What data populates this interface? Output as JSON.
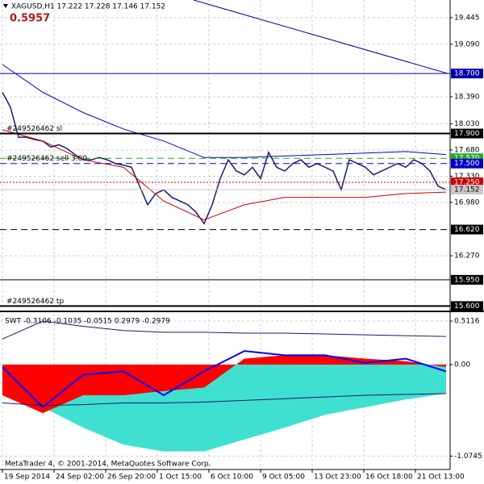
{
  "chart_data": [
    {
      "type": "line",
      "title": "XAGUSD,H1  17.222 17.228 17.146 17.152",
      "subtitle": "0.5957",
      "ylim": [
        15.54,
        19.68
      ],
      "yticks": [
        19.445,
        {
          "value": 19.09,
          "label": "19.090"
        },
        {
          "value": 18.39,
          "label": "18.390"
        },
        {
          "value": 18.03,
          "label": "18.030"
        },
        {
          "value": 17.68,
          "label": "17.680"
        },
        {
          "value": 17.33,
          "label": "17.330"
        },
        {
          "value": 16.98,
          "label": "16.980"
        },
        {
          "value": 16.27,
          "label": "16.270"
        }
      ],
      "grid": true,
      "series": [
        {
          "kind": "line",
          "color": "#1a1a6e",
          "width": 1.5,
          "x": [
            0,
            5,
            10,
            15,
            20,
            25,
            30,
            35,
            40,
            45,
            50,
            55,
            60,
            65,
            70,
            75,
            80,
            85,
            90,
            95,
            100,
            105,
            110,
            115,
            120,
            125,
            130,
            135,
            140,
            145,
            150,
            155,
            160,
            165,
            170,
            175,
            180,
            185,
            190,
            195,
            200,
            205,
            210,
            215,
            220,
            225,
            230,
            235,
            240,
            245,
            250,
            255,
            260,
            265,
            270,
            275
          ],
          "values": [
            18.45,
            18.25,
            17.85,
            17.85,
            17.82,
            17.8,
            17.72,
            17.75,
            17.7,
            17.62,
            17.55,
            17.55,
            17.58,
            17.55,
            17.5,
            17.48,
            17.45,
            17.2,
            16.95,
            17.1,
            17.15,
            17.05,
            17.0,
            16.95,
            16.85,
            16.7,
            16.95,
            17.3,
            17.55,
            17.4,
            17.35,
            17.45,
            17.3,
            17.65,
            17.45,
            17.4,
            17.5,
            17.55,
            17.45,
            17.5,
            17.45,
            17.4,
            17.15,
            17.55,
            17.5,
            17.45,
            17.35,
            17.4,
            17.45,
            17.5,
            17.45,
            17.55,
            17.5,
            17.4,
            17.2,
            17.15
          ]
        },
        {
          "kind": "line",
          "color": "#0000cc",
          "width": 1,
          "x": [
            0,
            25,
            50,
            75,
            100,
            125,
            150,
            175,
            200,
            225,
            250,
            275
          ],
          "values": [
            18.82,
            18.45,
            18.18,
            17.96,
            17.8,
            17.58,
            17.58,
            17.6,
            17.62,
            17.64,
            17.66,
            17.62
          ]
        },
        {
          "kind": "line",
          "color": "#cc0000",
          "width": 1,
          "x": [
            0,
            25,
            50,
            75,
            100,
            125,
            150,
            175,
            200,
            225,
            250,
            275
          ],
          "values": [
            17.95,
            17.8,
            17.55,
            17.45,
            17.0,
            16.75,
            16.95,
            17.05,
            17.05,
            17.05,
            17.1,
            17.12
          ]
        },
        {
          "kind": "line",
          "color": "#0000aa",
          "width": 1,
          "x": [
            118.5,
            276
          ],
          "values": [
            19.68,
            18.7
          ]
        }
      ],
      "levels": [
        {
          "value": 18.7,
          "label": "18.700",
          "color": "#0000aa",
          "text_color": "#ffffff",
          "style": "solid",
          "width": 1
        },
        {
          "value": 17.9,
          "label": "17.900",
          "color": "#000000",
          "text_color": "#ffffff",
          "style": "solid",
          "width": 2,
          "text": "#249526462 sl"
        },
        {
          "value": 17.57,
          "label": "17.570",
          "color": "#22aa22",
          "text_color": "#ffffff",
          "style": "dashed",
          "width": 1
        },
        {
          "value": 17.5,
          "label": "17.500",
          "color": "#0000cc",
          "text_color": "#ffffff",
          "style": "dashed",
          "width": 1,
          "text": "#249526462 sell 3.00"
        },
        {
          "value": 17.25,
          "label": "17.250",
          "color": "#cc0000",
          "text_color": "#ffffff",
          "style": "dotted",
          "width": 1
        },
        {
          "value": 17.152,
          "label": "17.152",
          "color": "#c8c8c8",
          "text_color": "#000000",
          "style": "solid",
          "width": 1
        },
        {
          "value": 16.62,
          "label": "16.620",
          "color": "#000000",
          "text_color": "#ffffff",
          "style": "dashed",
          "width": 1
        },
        {
          "value": 15.95,
          "label": "15.950",
          "color": "#000000",
          "text_color": "#ffffff",
          "style": "solid",
          "width": 1
        },
        {
          "value": 15.6,
          "label": "15.600",
          "color": "#000000",
          "text_color": "#ffffff",
          "style": "solid",
          "width": 2,
          "text": "#249526462 tp"
        }
      ]
    },
    {
      "type": "line",
      "title": "SWT -0.3106 -0.1035 -0.0515 0.2979 -0.2979",
      "note": "MetaTrader 4, © 2001-2014, MetaQuotes Software Corp.",
      "ylim": [
        -1.232,
        0.597
      ],
      "yticks": [
        0.5116,
        {
          "value": 0,
          "label": "0.00"
        },
        -1.0745
      ],
      "xlim": [
        -1.5,
        277.5
      ],
      "xticks": [
        {
          "value": 0,
          "label": "19 Sep 2014"
        },
        {
          "value": 32,
          "label": "24 Sep 02:00"
        },
        {
          "value": 64,
          "label": "26 Sep 20:00"
        },
        {
          "value": 96,
          "label": "1 Oct 15:00"
        },
        {
          "value": 128,
          "label": "6 Oct 10:00"
        },
        {
          "value": 160,
          "label": "9 Oct 05:00"
        },
        {
          "value": 192,
          "label": "13 Oct 23:00"
        },
        {
          "value": 224,
          "label": "16 Oct 18:00"
        },
        {
          "value": 256,
          "label": "21 Oct 13:00"
        }
      ],
      "grid": true,
      "series": [
        {
          "kind": "area",
          "color": "#40e0d0",
          "x": [
            0,
            25,
            50,
            75,
            100,
            125,
            150,
            175,
            200,
            225,
            250,
            275
          ],
          "values": [
            -0.12,
            -0.5,
            -0.74,
            -0.94,
            -1.02,
            -1.02,
            -0.88,
            -0.74,
            -0.59,
            -0.5,
            -0.41,
            -0.34
          ]
        },
        {
          "kind": "area",
          "color": "#ff0000",
          "x": [
            0,
            25,
            50,
            75,
            100,
            125,
            150,
            175,
            200,
            225,
            250,
            275
          ],
          "values": [
            -0.36,
            -0.57,
            -0.36,
            -0.36,
            -0.31,
            -0.27,
            0.07,
            0.11,
            0.11,
            0.07,
            0.04,
            -0.03
          ]
        },
        {
          "kind": "line",
          "color": "#0000ff",
          "width": 2,
          "x": [
            0,
            25,
            50,
            75,
            100,
            125,
            150,
            175,
            200,
            225,
            250,
            275
          ],
          "values": [
            -0.03,
            -0.5,
            -0.12,
            -0.08,
            -0.36,
            -0.08,
            0.16,
            0.11,
            0.11,
            0.02,
            0.07,
            -0.08
          ]
        },
        {
          "kind": "line",
          "color": "#1a1a6e",
          "width": 1,
          "x": [
            0,
            25,
            50,
            75,
            100,
            125,
            150,
            175,
            200,
            225,
            250,
            275
          ],
          "values": [
            0.3,
            0.51,
            0.45,
            0.4,
            0.38,
            0.38,
            0.37,
            0.37,
            0.36,
            0.35,
            0.34,
            0.33
          ]
        },
        {
          "kind": "line",
          "color": "#1a1a6e",
          "width": 1,
          "x": [
            0,
            25,
            50,
            75,
            100,
            125,
            150,
            175,
            200,
            225,
            250,
            275
          ],
          "values": [
            -0.45,
            -0.48,
            -0.47,
            -0.45,
            -0.45,
            -0.44,
            -0.42,
            -0.4,
            -0.38,
            -0.36,
            -0.35,
            -0.34
          ]
        }
      ]
    }
  ]
}
